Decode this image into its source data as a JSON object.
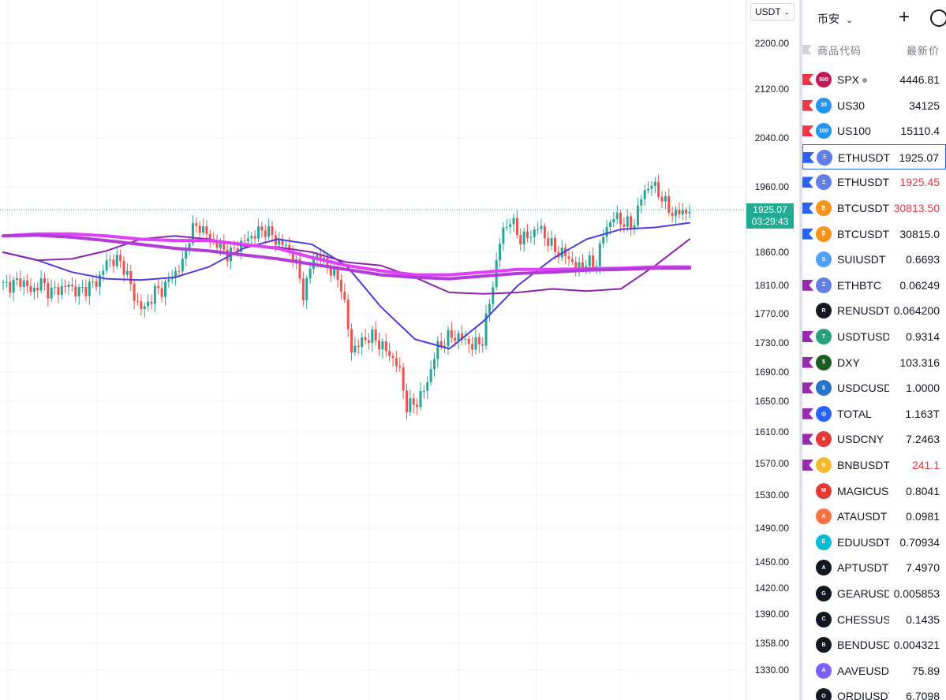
{
  "price_scale": {
    "currency": "USDT",
    "ticks": [
      "2200.00",
      "2120.00",
      "2040.00",
      "1960.00",
      "1860.00",
      "1810.00",
      "1770.00",
      "1730.00",
      "1690.00",
      "1650.00",
      "1610.00",
      "1570.00",
      "1530.00",
      "1490.00",
      "1450.00",
      "1420.00",
      "1390.00",
      "1358.00",
      "1330.00"
    ],
    "last_price": "1925.07",
    "countdown": "03:29:43",
    "colors": {
      "last_label_bg": "#22ab94"
    }
  },
  "chart_data": {
    "type": "candlestick",
    "symbol": "ETHUSDT",
    "last_price": 1925.07,
    "y_visible_range": [
      1330,
      2200
    ],
    "price_path_approx": [
      1810,
      1812,
      1818,
      1800,
      1815,
      1800,
      1805,
      1810,
      1800,
      1808,
      1815,
      1845,
      1850,
      1835,
      1790,
      1775,
      1800,
      1805,
      1825,
      1840,
      1895,
      1900,
      1880,
      1870,
      1855,
      1870,
      1880,
      1890,
      1895,
      1878,
      1870,
      1850,
      1795,
      1855,
      1850,
      1830,
      1810,
      1720,
      1730,
      1740,
      1730,
      1715,
      1700,
      1640,
      1650,
      1670,
      1720,
      1735,
      1740,
      1735,
      1725,
      1735,
      1805,
      1890,
      1910,
      1880,
      1885,
      1900,
      1875,
      1860,
      1855,
      1835,
      1845,
      1840,
      1895,
      1915,
      1905,
      1900,
      1950,
      1965,
      1945,
      1920,
      1920,
      1925
    ],
    "moving_averages": [
      {
        "color": "#4d3ddb",
        "values": [
          1860,
          1848,
          1830,
          1820,
          1818,
          1822,
          1838,
          1866,
          1880,
          1872,
          1840,
          1780,
          1735,
          1722,
          1760,
          1810,
          1850,
          1880,
          1895,
          1898,
          1905
        ]
      },
      {
        "color": "#8e24aa",
        "values": [
          1860,
          1848,
          1850,
          1862,
          1880,
          1885,
          1880,
          1870,
          1868,
          1860,
          1845,
          1840,
          1822,
          1800,
          1798,
          1800,
          1805,
          1802,
          1805,
          1840,
          1880
        ]
      },
      {
        "color": "#e040fb",
        "values": [
          1885,
          1888,
          1888,
          1885,
          1880,
          1878,
          1878,
          1872,
          1866,
          1852,
          1840,
          1832,
          1826,
          1826,
          1830,
          1834,
          1834,
          1835,
          1836,
          1838,
          1838
        ]
      },
      {
        "color": "#b23bd9",
        "values": [
          1885,
          1886,
          1883,
          1878,
          1872,
          1866,
          1862,
          1856,
          1850,
          1842,
          1834,
          1826,
          1822,
          1820,
          1824,
          1828,
          1830,
          1833,
          1834,
          1836,
          1836
        ]
      }
    ]
  },
  "watchlist": {
    "title": "币安",
    "add_label": "+",
    "col_symbol": "商品代码",
    "col_last": "最新价",
    "rows": [
      {
        "symbol": "SPX",
        "price": "4446.81",
        "flag": "#f23645",
        "icon_bg": "#c2185b",
        "icon_text": "500",
        "red": false,
        "dot": true
      },
      {
        "symbol": "US30",
        "price": "34125",
        "flag": "#f23645",
        "icon_bg": "#2196f3",
        "icon_text": "30",
        "red": false
      },
      {
        "symbol": "US100",
        "price": "15110.4",
        "flag": "#f23645",
        "icon_bg": "#2196f3",
        "icon_text": "100",
        "red": false
      },
      {
        "symbol": "ETHUSDT",
        "price": "1925.07",
        "flag": "#2962ff",
        "icon_bg": "#627eea",
        "icon_text": "Ξ",
        "red": false,
        "selected": true
      },
      {
        "symbol": "ETHUSDT",
        "price": "1925.45",
        "flag": "#2962ff",
        "icon_bg": "#627eea",
        "icon_text": "Ξ",
        "red": true
      },
      {
        "symbol": "BTCUSDT",
        "price": "30813.50",
        "flag": "#2962ff",
        "icon_bg": "#f7931a",
        "icon_text": "₿",
        "red": true
      },
      {
        "symbol": "BTCUSDT",
        "price": "30815.0",
        "flag": "#2962ff",
        "icon_bg": "#f7931a",
        "icon_text": "₿",
        "red": false
      },
      {
        "symbol": "SUIUSDT",
        "price": "0.6693",
        "flag": "",
        "icon_bg": "#4da2ff",
        "icon_text": "S",
        "red": false
      },
      {
        "symbol": "ETHBTC",
        "price": "0.06249",
        "flag": "#9c27b0",
        "icon_bg": "#627eea",
        "icon_text": "Ξ",
        "red": false
      },
      {
        "symbol": "RENUSDT",
        "price": "0.064200",
        "flag": "",
        "icon_bg": "#131722",
        "icon_text": "R",
        "red": false
      },
      {
        "symbol": "USDTUSD",
        "price": "0.9314",
        "flag": "#9c27b0",
        "icon_bg": "#26a17b",
        "icon_text": "T",
        "red": false
      },
      {
        "symbol": "DXY",
        "price": "103.316",
        "flag": "#9c27b0",
        "icon_bg": "#1b5e20",
        "icon_text": "$",
        "red": false
      },
      {
        "symbol": "USDCUSDT",
        "price": "1.0000",
        "flag": "#9c27b0",
        "icon_bg": "#2775ca",
        "icon_text": "$",
        "red": false
      },
      {
        "symbol": "TOTAL",
        "price": "1.163T",
        "flag": "#9c27b0",
        "icon_bg": "#2962ff",
        "icon_text": "◎",
        "red": false
      },
      {
        "symbol": "USDCNY",
        "price": "7.2463",
        "flag": "#9c27b0",
        "icon_bg": "#e53935",
        "icon_text": "¥",
        "red": false
      },
      {
        "symbol": "BNBUSDT",
        "price": "241.1",
        "flag": "#9c27b0",
        "icon_bg": "#f3ba2f",
        "icon_text": "B",
        "red": true
      },
      {
        "symbol": "MAGICUSDT",
        "price": "0.8041",
        "flag": "",
        "icon_bg": "#e53935",
        "icon_text": "M",
        "red": false
      },
      {
        "symbol": "ATAUSDT",
        "price": "0.0981",
        "flag": "",
        "icon_bg": "#ff7043",
        "icon_text": "A",
        "red": false
      },
      {
        "symbol": "EDUUSDT",
        "price": "0.70934",
        "flag": "",
        "icon_bg": "#00bcd4",
        "icon_text": "E",
        "red": false
      },
      {
        "symbol": "APTUSDT",
        "price": "7.4970",
        "flag": "",
        "icon_bg": "#131722",
        "icon_text": "A",
        "red": false
      },
      {
        "symbol": "GEARUSDT",
        "price": "0.005853",
        "flag": "",
        "icon_bg": "#131722",
        "icon_text": "G",
        "red": false
      },
      {
        "symbol": "CHESSUSDT",
        "price": "0.1435",
        "flag": "",
        "icon_bg": "#131722",
        "icon_text": "C",
        "red": false
      },
      {
        "symbol": "BENDUSDT",
        "price": "0.004321",
        "flag": "",
        "icon_bg": "#131722",
        "icon_text": "B",
        "red": false
      },
      {
        "symbol": "AAVEUSDT",
        "price": "75.89",
        "flag": "",
        "icon_bg": "#7b61ff",
        "icon_text": "A",
        "red": false
      },
      {
        "symbol": "ORDIUSDT",
        "price": "6.7098",
        "flag": "",
        "icon_bg": "#131722",
        "icon_text": "O",
        "red": false
      }
    ]
  }
}
